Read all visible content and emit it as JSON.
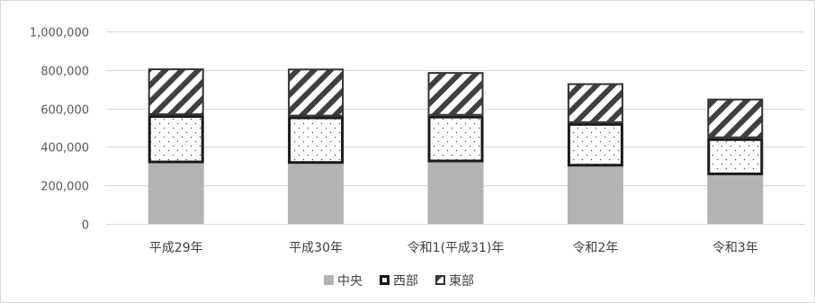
{
  "chart_data": {
    "type": "bar",
    "stacked": true,
    "categories": [
      "平成29年",
      "平成30年",
      "令和1(平成31)年",
      "令和2年",
      "令和3年"
    ],
    "series": [
      {
        "name": "中央",
        "values": [
          315000,
          312000,
          320000,
          298000,
          253000
        ],
        "color": "#b3b3b3",
        "pattern": "solid"
      },
      {
        "name": "西部",
        "values": [
          250000,
          246000,
          242000,
          226000,
          192000
        ],
        "color": "#1a1a1a",
        "pattern": "dots"
      },
      {
        "name": "東部",
        "values": [
          243000,
          249000,
          227000,
          207000,
          206000
        ],
        "color": "#333333",
        "pattern": "diagonal-stripes"
      }
    ],
    "y_ticks": [
      "0",
      "200,000",
      "400,000",
      "600,000",
      "800,000",
      "1,000,000"
    ],
    "ylim": [
      0,
      1000000
    ],
    "grid": true,
    "legend": "bottom-center",
    "title": "",
    "xlabel": "",
    "ylabel": ""
  }
}
